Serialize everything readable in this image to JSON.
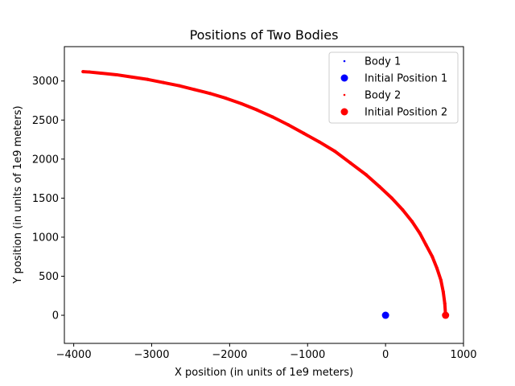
{
  "chart_data": {
    "type": "scatter",
    "title": "Positions of Two Bodies",
    "xlabel": "X position (in units of 1e9 meters)",
    "ylabel": "Y position (in units of 1e9 meters)",
    "xlim": [
      -4120,
      1000
    ],
    "ylim": [
      -360,
      3440
    ],
    "xticks": [
      -4000,
      -3000,
      -2000,
      -1000,
      0,
      1000
    ],
    "yticks": [
      0,
      500,
      1000,
      1500,
      2000,
      2500,
      3000
    ],
    "xtick_labels": [
      "−4000",
      "−3000",
      "−2000",
      "−1000",
      "0",
      "1000"
    ],
    "ytick_labels": [
      "0",
      "500",
      "1000",
      "1500",
      "2000",
      "2500",
      "3000"
    ],
    "grid": false,
    "legend_position": "top-right",
    "series": [
      {
        "name": "Body 1",
        "color": "#0000ff",
        "marker": "small-dot",
        "x": [
          0,
          0
        ],
        "y": [
          0,
          0
        ]
      },
      {
        "name": "Initial Position 1",
        "color": "#0000ff",
        "marker": "large-dot",
        "x": [
          0
        ],
        "y": [
          0
        ]
      },
      {
        "name": "Body 2",
        "color": "#ff0000",
        "marker": "small-dot",
        "x": [
          770,
          760,
          740,
          710,
          660,
          600,
          520,
          440,
          340,
          220,
          80,
          -80,
          -250,
          -450,
          -650,
          -850,
          -1050,
          -1250,
          -1450,
          -1650,
          -1850,
          -2050,
          -2250,
          -2450,
          -2650,
          -2850,
          -3050,
          -3250,
          -3450,
          -3650,
          -3800,
          -3880
        ],
        "y": [
          0,
          150,
          300,
          450,
          600,
          750,
          900,
          1050,
          1200,
          1350,
          1500,
          1650,
          1800,
          1950,
          2100,
          2220,
          2330,
          2440,
          2540,
          2630,
          2710,
          2780,
          2840,
          2890,
          2940,
          2980,
          3020,
          3050,
          3080,
          3100,
          3115,
          3120
        ]
      },
      {
        "name": "Initial Position 2",
        "color": "#ff0000",
        "marker": "large-dot",
        "x": [
          770
        ],
        "y": [
          0
        ]
      }
    ]
  }
}
